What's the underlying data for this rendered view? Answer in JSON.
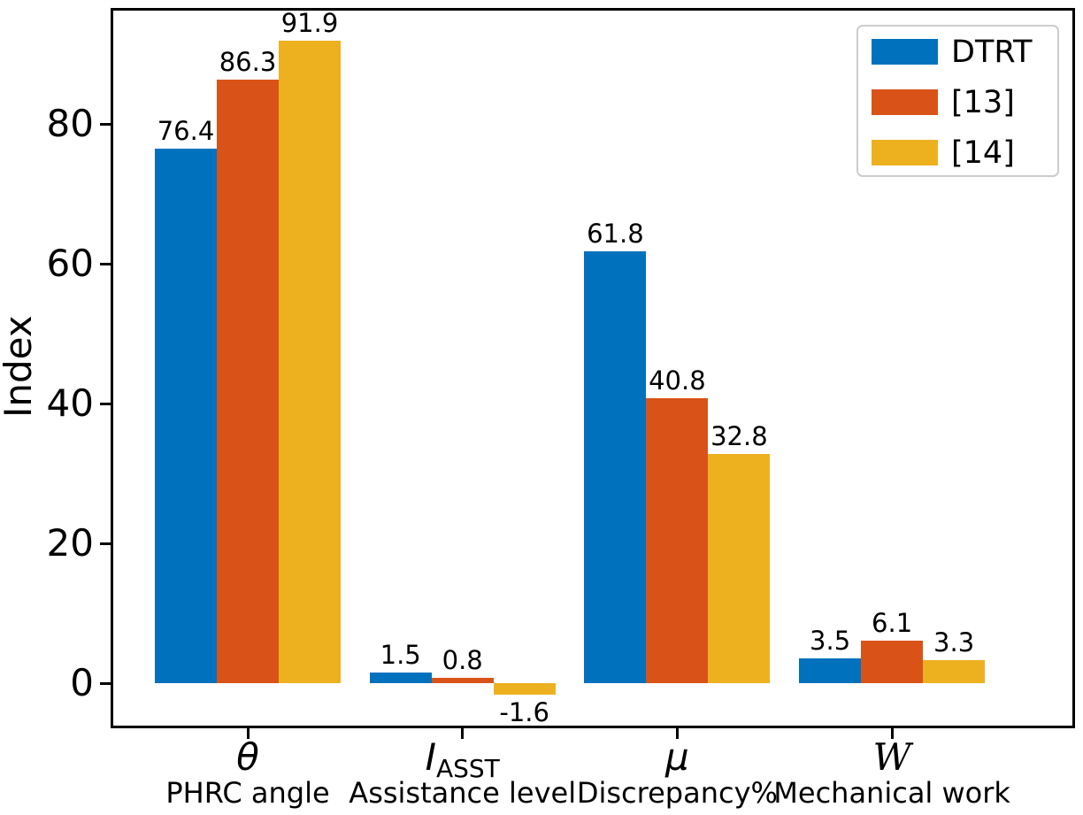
{
  "chart_data": {
    "type": "bar",
    "title": "",
    "xlabel": "",
    "ylabel": "Index",
    "ylim": [
      -6.5,
      96.5
    ],
    "yticks": [
      0,
      20,
      40,
      60,
      80
    ],
    "grid": false,
    "legend_position": "top-right",
    "bar_value_labels": true,
    "categories": [
      {
        "slug": "theta",
        "symbol": "θ",
        "symbol_style": "italic",
        "subscript": "",
        "label": "PHRC angle"
      },
      {
        "slug": "i-asst",
        "symbol": "I",
        "symbol_style": "italic",
        "subscript": "ASST",
        "label": "Assistance level"
      },
      {
        "slug": "mu",
        "symbol": "μ",
        "symbol_style": "italic",
        "subscript": "",
        "label": "Discrepancy%"
      },
      {
        "slug": "w",
        "symbol": "W",
        "symbol_style": "script",
        "subscript": "",
        "label": "Mechanical work"
      }
    ],
    "series": [
      {
        "slug": "dtrt",
        "name": "DTRT",
        "color": "#0072BD",
        "values": [
          76.4,
          1.5,
          61.8,
          3.5
        ]
      },
      {
        "slug": "ref13",
        "name": "[13]",
        "color": "#D95319",
        "values": [
          86.3,
          0.8,
          40.8,
          6.1
        ]
      },
      {
        "slug": "ref14",
        "name": "[14]",
        "color": "#EDB120",
        "values": [
          91.9,
          -1.6,
          32.8,
          3.3
        ]
      }
    ],
    "colors": {
      "axis": "#000000",
      "background": "#ffffff",
      "legend_border": "#cccccc",
      "text": "#000000"
    }
  }
}
